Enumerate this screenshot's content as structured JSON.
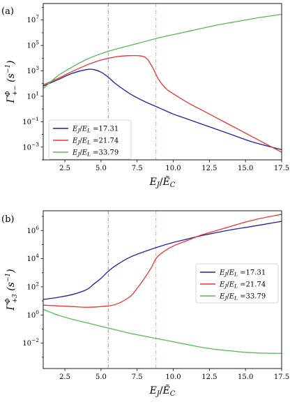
{
  "chart_data": [
    {
      "type": "line",
      "panel_label": "(a)",
      "xlabel": "E_J/Ẽ_C",
      "ylabel": "Γ^Φ_{+−} (s⁻¹)",
      "ylabel_parts": {
        "main": "Γ",
        "sup": "Φ",
        "sub": "+−",
        "unit": "(s",
        "unit_exp": "−1",
        "unit_close": ")"
      },
      "xlabel_parts": {
        "num": "E",
        "num_sub": "J",
        "sep": "/",
        "den": "Ẽ",
        "den_sub": "C"
      },
      "xlim": [
        1.0,
        17.5
      ],
      "ylim_log10": [
        -4,
        8.3
      ],
      "y_scale": "log",
      "xticks": [
        2.5,
        5.0,
        7.5,
        10.0,
        12.5,
        15.0,
        17.5
      ],
      "xtick_labels": [
        "2.5",
        "5.0",
        "7.5",
        "10.0",
        "12.5",
        "15.0",
        "17.5"
      ],
      "yticks_exp": [
        -3,
        -1,
        1,
        3,
        5,
        7
      ],
      "ytick_labels": [
        "10",
        "10",
        "10",
        "10",
        "10",
        "10"
      ],
      "ytick_exps": [
        "−3",
        "−1",
        "1",
        "3",
        "5",
        "7"
      ],
      "vlines": [
        {
          "x": 5.5,
          "color": "#8f8fe6"
        },
        {
          "x": 8.8,
          "color": "#f4a0a0"
        }
      ],
      "legend_position": "lower-left",
      "series": [
        {
          "name": "E_J/E_L = 17.31",
          "label_lhs": "E",
          "label_lhs_sub": "J",
          "label_rhs": "E",
          "label_rhs_sub": "L",
          "label_value": "=17.31",
          "color": "#1f1fa8",
          "x": [
            1.0,
            2.0,
            3.0,
            4.0,
            4.5,
            5.0,
            5.5,
            6.0,
            7.0,
            8.0,
            9.0,
            10.0,
            11.0,
            12.5,
            14.0,
            15.5,
            17.5
          ],
          "y_log10": [
            1.8,
            2.3,
            2.8,
            3.1,
            3.1,
            2.9,
            2.5,
            2.0,
            1.2,
            0.6,
            0.1,
            -0.4,
            -0.8,
            -1.4,
            -2.0,
            -2.6,
            -3.2
          ]
        },
        {
          "name": "E_J/E_L = 21.74",
          "label_lhs": "E",
          "label_lhs_sub": "J",
          "label_rhs": "E",
          "label_rhs_sub": "L",
          "label_value": "=21.74",
          "color": "#ee3333",
          "x": [
            1.0,
            2.0,
            3.0,
            4.0,
            5.0,
            6.0,
            7.0,
            8.0,
            8.5,
            9.0,
            9.5,
            10.0,
            11.0,
            12.0,
            13.5,
            15.0,
            16.5,
            17.5
          ],
          "y_log10": [
            1.9,
            2.4,
            2.95,
            3.45,
            3.85,
            4.1,
            4.2,
            4.1,
            3.4,
            2.3,
            1.6,
            1.2,
            0.5,
            -0.1,
            -1.0,
            -1.9,
            -2.8,
            -3.4
          ]
        },
        {
          "name": "E_J/E_L = 33.79",
          "label_lhs": "E",
          "label_lhs_sub": "J",
          "label_rhs": "E",
          "label_rhs_sub": "L",
          "label_value": "=33.79",
          "color": "#55bb55",
          "x": [
            1.0,
            2.0,
            3.0,
            4.0,
            5.0,
            6.0,
            7.0,
            8.0,
            9.0,
            10.0,
            11.0,
            12.0,
            13.0,
            14.0,
            15.0,
            16.0,
            17.5
          ],
          "y_log10": [
            1.6,
            2.6,
            3.3,
            3.9,
            4.35,
            4.7,
            5.0,
            5.3,
            5.6,
            5.85,
            6.1,
            6.35,
            6.6,
            6.8,
            7.0,
            7.2,
            7.45
          ]
        }
      ]
    },
    {
      "type": "line",
      "panel_label": "(b)",
      "xlabel": "E_J/Ẽ_C",
      "ylabel": "Γ^Φ_{+3} (s⁻¹)",
      "ylabel_parts": {
        "main": "Γ",
        "sup": "Φ",
        "sub": "+3",
        "unit": "(s",
        "unit_exp": "−1",
        "unit_close": ")"
      },
      "xlabel_parts": {
        "num": "E",
        "num_sub": "J",
        "sep": "/",
        "den": "Ẽ",
        "den_sub": "C"
      },
      "xlim": [
        1.0,
        17.5
      ],
      "ylim_log10": [
        -3.8,
        7.4
      ],
      "y_scale": "log",
      "xticks": [
        2.5,
        5.0,
        7.5,
        10.0,
        12.5,
        15.0,
        17.5
      ],
      "xtick_labels": [
        "2.5",
        "5.0",
        "7.5",
        "10.0",
        "12.5",
        "15.0",
        "17.5"
      ],
      "yticks_exp": [
        -2,
        0,
        2,
        4,
        6
      ],
      "ytick_labels": [
        "10",
        "10",
        "10",
        "10",
        "10"
      ],
      "ytick_exps": [
        "−2",
        "0",
        "2",
        "4",
        "6"
      ],
      "vlines": [
        {
          "x": 5.5,
          "color": "#8f8fe6"
        },
        {
          "x": 8.8,
          "color": "#f4a0a0"
        }
      ],
      "legend_position": "center-right",
      "series": [
        {
          "name": "E_J/E_L = 17.31",
          "label_lhs": "E",
          "label_lhs_sub": "J",
          "label_rhs": "E",
          "label_rhs_sub": "L",
          "label_value": "=17.31",
          "color": "#1f1fa8",
          "x": [
            1.0,
            2.0,
            3.0,
            4.0,
            4.5,
            5.0,
            5.5,
            6.0,
            7.0,
            8.0,
            9.0,
            10.0,
            11.0,
            12.0,
            13.0,
            14.0,
            15.5,
            17.5
          ],
          "y_log10": [
            1.1,
            1.25,
            1.45,
            1.8,
            2.2,
            2.6,
            3.1,
            3.5,
            4.1,
            4.5,
            4.85,
            5.15,
            5.4,
            5.65,
            5.85,
            6.05,
            6.3,
            6.65
          ]
        },
        {
          "name": "E_J/E_L = 21.74",
          "label_lhs": "E",
          "label_lhs_sub": "J",
          "label_rhs": "E",
          "label_rhs_sub": "L",
          "label_value": "=21.74",
          "color": "#ee3333",
          "x": [
            1.0,
            2.0,
            3.0,
            4.0,
            5.0,
            6.0,
            7.0,
            7.5,
            8.0,
            8.5,
            8.8,
            9.2,
            10.0,
            11.0,
            12.0,
            13.0,
            14.0,
            15.0,
            16.0,
            17.5
          ],
          "y_log10": [
            0.7,
            0.65,
            0.6,
            0.55,
            0.6,
            0.75,
            1.3,
            1.9,
            2.6,
            3.4,
            4.0,
            4.4,
            4.9,
            5.3,
            5.7,
            6.0,
            6.3,
            6.6,
            6.85,
            7.15
          ]
        },
        {
          "name": "E_J/E_L = 33.79",
          "label_lhs": "E",
          "label_lhs_sub": "J",
          "label_rhs": "E",
          "label_rhs_sub": "L",
          "label_value": "=33.79",
          "color": "#55bb55",
          "x": [
            1.0,
            2.0,
            3.0,
            4.0,
            5.0,
            6.0,
            7.0,
            8.0,
            9.0,
            10.0,
            11.0,
            12.0,
            13.0,
            14.0,
            15.0,
            16.0,
            17.0,
            17.5
          ],
          "y_log10": [
            0.4,
            0.0,
            -0.3,
            -0.55,
            -0.8,
            -1.05,
            -1.3,
            -1.5,
            -1.7,
            -1.9,
            -2.1,
            -2.3,
            -2.45,
            -2.55,
            -2.65,
            -2.7,
            -2.72,
            -2.72
          ]
        }
      ]
    }
  ]
}
